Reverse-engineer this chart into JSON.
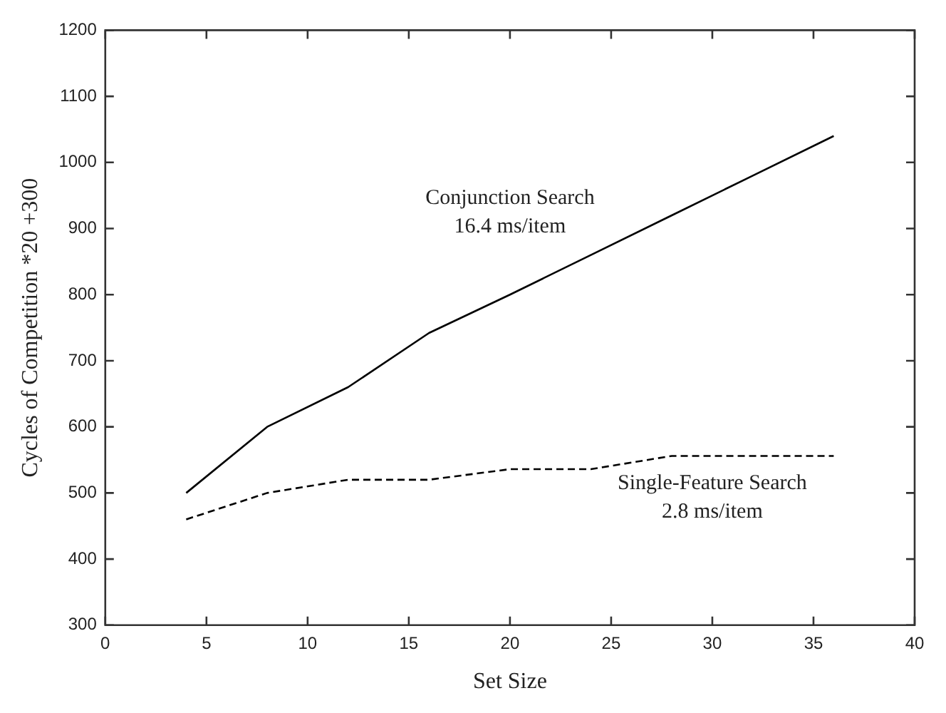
{
  "chart_data": {
    "type": "line",
    "xlabel": "Set Size",
    "ylabel": "Cycles of Competition *20 +300",
    "x": [
      4,
      8,
      12,
      16,
      20,
      24,
      28,
      32,
      36
    ],
    "series": [
      {
        "name": "Conjunction Search",
        "color": "#000000",
        "line_style": "solid",
        "values": [
          500,
          600,
          660,
          742,
          800,
          860,
          920,
          980,
          1040
        ]
      },
      {
        "name": "Single-Feature Search",
        "color": "#000000",
        "line_style": "dashed",
        "values": [
          460,
          500,
          520,
          520,
          536,
          536,
          556,
          556,
          556
        ]
      }
    ],
    "annotations": [
      "16.4 ms/item",
      "2.8 ms/item"
    ],
    "xlim": [
      0,
      40
    ],
    "xticks": [
      0,
      5,
      10,
      15,
      20,
      25,
      30,
      35,
      40
    ],
    "ylim": [
      300,
      1200
    ],
    "yticks": [
      300,
      400,
      500,
      600,
      700,
      800,
      900,
      1000,
      1100,
      1200
    ],
    "grid": false,
    "legend": false,
    "marker": "none"
  }
}
